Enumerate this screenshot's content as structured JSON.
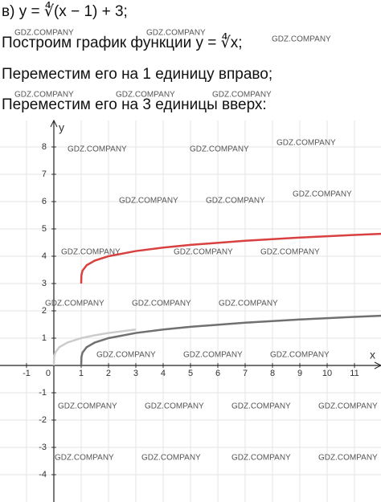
{
  "lines": [
    "в) y = ∜(x − 1) + 3;",
    "Построим график функции y = ∜x;",
    "Переместим его на 1 единицу вправо;",
    "Переместим его на 3 единицы вверх:"
  ],
  "watermark": "GDZ.COMPANY",
  "chart_data": {
    "type": "line",
    "xlabel": "x",
    "ylabel": "y",
    "xlim": [
      -1.97,
      11.97
    ],
    "ylim": [
      -5,
      8.97
    ],
    "xticks": [
      -1,
      0,
      1,
      2,
      3,
      4,
      5,
      6,
      7,
      8,
      9,
      10,
      11
    ],
    "yticks": [
      -4,
      -3,
      -2,
      -1,
      1,
      2,
      3,
      4,
      5,
      6,
      7,
      8
    ],
    "grid": true,
    "series": [
      {
        "color": "#cccccc",
        "x": [
          0,
          0.01,
          0.05,
          0.2,
          0.5,
          1,
          1.5,
          2,
          3
        ],
        "values": [
          0,
          0.316,
          0.473,
          0.669,
          0.841,
          1,
          1.107,
          1.189,
          1.316
        ]
      },
      {
        "color": "#707070",
        "x": [
          1,
          1.01,
          1.05,
          1.2,
          1.5,
          2,
          3,
          4,
          5,
          7,
          9,
          11,
          12
        ],
        "values": [
          0,
          0.316,
          0.473,
          0.669,
          0.841,
          1,
          1.189,
          1.316,
          1.414,
          1.565,
          1.682,
          1.778,
          1.821
        ]
      },
      {
        "color": "#d94040",
        "x": [
          1,
          1.01,
          1.05,
          1.2,
          1.5,
          2,
          3,
          4,
          5,
          7,
          9,
          11,
          12
        ],
        "values": [
          3,
          3.316,
          3.473,
          3.669,
          3.841,
          4,
          4.189,
          4.316,
          4.414,
          4.565,
          4.682,
          4.778,
          4.821
        ]
      }
    ]
  }
}
